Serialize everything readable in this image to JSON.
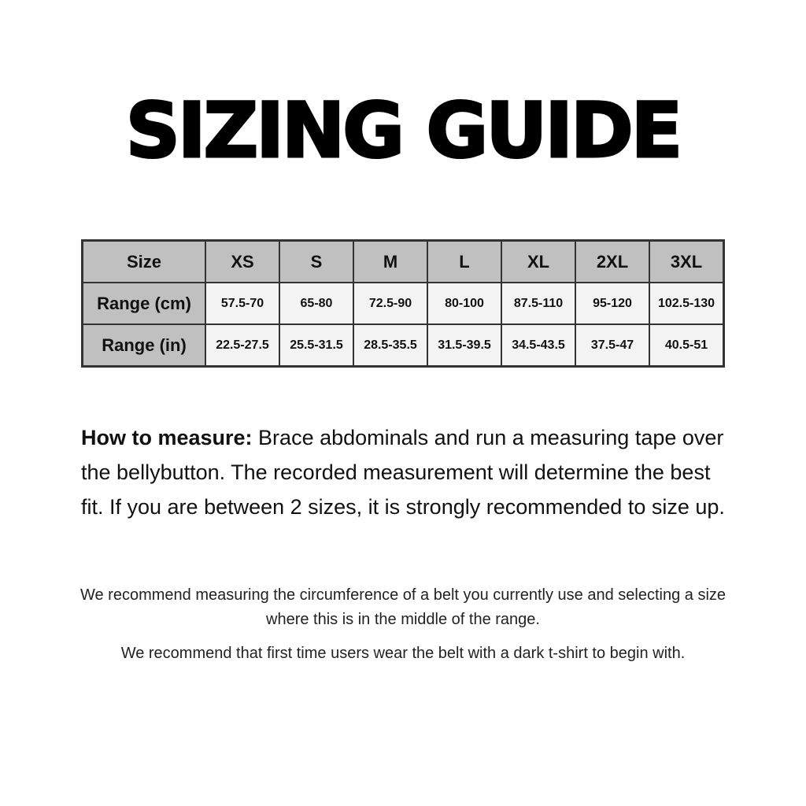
{
  "title": "SIZING GUIDE",
  "table": {
    "header": [
      "Size",
      "XS",
      "S",
      "M",
      "L",
      "XL",
      "2XL",
      "3XL"
    ],
    "rows": [
      {
        "label": "Range (cm)",
        "values": [
          "57.5-70",
          "65-80",
          "72.5-90",
          "80-100",
          "87.5-110",
          "95-120",
          "102.5-130"
        ]
      },
      {
        "label": "Range (in)",
        "values": [
          "22.5-27.5",
          "25.5-31.5",
          "28.5-35.5",
          "31.5-39.5",
          "34.5-43.5",
          "37.5-47",
          "40.5-51"
        ]
      }
    ]
  },
  "how_to_measure": {
    "label": "How to measure:",
    "text": " Brace abdominals and run a measuring tape over the bellybutton. The recorded measurement will determine the best fit. If you are between 2 sizes, it is strongly recommended to size up."
  },
  "notes": [
    "We recommend measuring the circumference of a belt you currently use and selecting a size where this is in the middle of the range.",
    "We recommend that first time users wear the belt with a dark t-shirt to begin with."
  ],
  "colors": {
    "header_bg": "#c0c0c0",
    "cell_bg": "#f3f3f3",
    "border": "#333333"
  }
}
